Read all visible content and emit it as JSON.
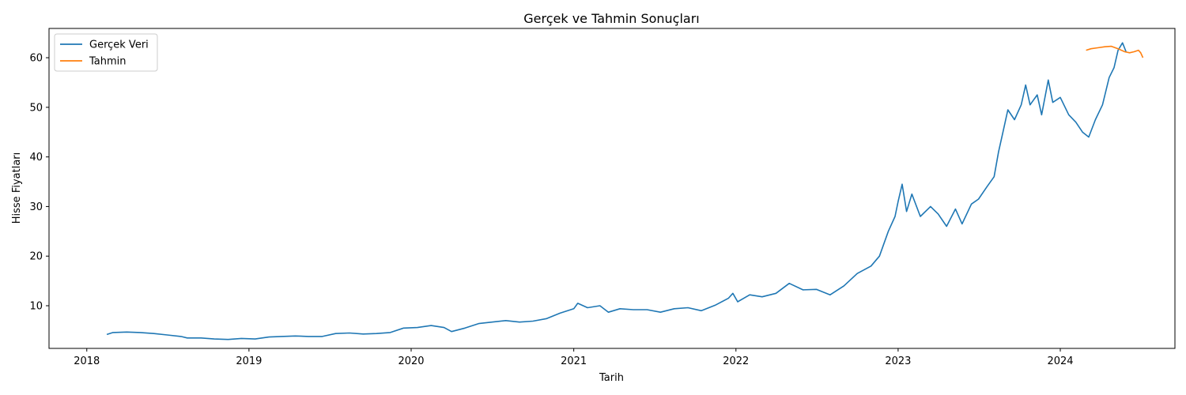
{
  "chart_data": {
    "type": "line",
    "title": "Gerçek ve Tahmin Sonuçları",
    "xlabel": "Tarih",
    "ylabel": "Hisse Fiyatları",
    "x_axis": "date",
    "xlim": [
      "2017-10-08",
      "2024-09-15"
    ],
    "ylim": [
      1.4,
      65.9
    ],
    "x_ticks": [
      {
        "date": "2018-01-01",
        "label": "2018"
      },
      {
        "date": "2019-01-01",
        "label": "2019"
      },
      {
        "date": "2020-01-01",
        "label": "2020"
      },
      {
        "date": "2021-01-01",
        "label": "2021"
      },
      {
        "date": "2022-01-01",
        "label": "2022"
      },
      {
        "date": "2023-01-01",
        "label": "2023"
      },
      {
        "date": "2024-01-01",
        "label": "2024"
      }
    ],
    "y_ticks": [
      10,
      20,
      30,
      40,
      50,
      60
    ],
    "grid": false,
    "legend": {
      "position": "top-left"
    },
    "series": [
      {
        "name": "Gerçek Veri",
        "color": "#1f77b4",
        "points": [
          [
            "2018-02-15",
            4.2
          ],
          [
            "2018-03-01",
            4.6
          ],
          [
            "2018-04-01",
            4.7
          ],
          [
            "2018-05-01",
            4.6
          ],
          [
            "2018-06-01",
            4.4
          ],
          [
            "2018-07-01",
            4.1
          ],
          [
            "2018-08-01",
            3.8
          ],
          [
            "2018-08-15",
            3.5
          ],
          [
            "2018-09-15",
            3.5
          ],
          [
            "2018-10-15",
            3.3
          ],
          [
            "2018-11-15",
            3.2
          ],
          [
            "2018-12-15",
            3.4
          ],
          [
            "2019-01-15",
            3.3
          ],
          [
            "2019-02-15",
            3.7
          ],
          [
            "2019-03-15",
            3.8
          ],
          [
            "2019-04-15",
            3.9
          ],
          [
            "2019-05-15",
            3.8
          ],
          [
            "2019-06-15",
            3.8
          ],
          [
            "2019-07-15",
            4.4
          ],
          [
            "2019-08-15",
            4.5
          ],
          [
            "2019-09-15",
            4.3
          ],
          [
            "2019-10-15",
            4.4
          ],
          [
            "2019-11-15",
            4.6
          ],
          [
            "2019-12-15",
            5.5
          ],
          [
            "2020-01-15",
            5.6
          ],
          [
            "2020-02-15",
            6.0
          ],
          [
            "2020-03-15",
            5.6
          ],
          [
            "2020-04-01",
            4.8
          ],
          [
            "2020-05-01",
            5.5
          ],
          [
            "2020-06-01",
            6.4
          ],
          [
            "2020-07-01",
            6.7
          ],
          [
            "2020-08-01",
            7.0
          ],
          [
            "2020-09-01",
            6.7
          ],
          [
            "2020-10-01",
            6.9
          ],
          [
            "2020-11-01",
            7.4
          ],
          [
            "2020-12-01",
            8.5
          ],
          [
            "2021-01-01",
            9.4
          ],
          [
            "2021-01-10",
            10.5
          ],
          [
            "2021-02-01",
            9.6
          ],
          [
            "2021-03-01",
            10.0
          ],
          [
            "2021-03-20",
            8.7
          ],
          [
            "2021-04-15",
            9.4
          ],
          [
            "2021-05-15",
            9.2
          ],
          [
            "2021-06-15",
            9.2
          ],
          [
            "2021-07-15",
            8.7
          ],
          [
            "2021-08-15",
            9.4
          ],
          [
            "2021-09-15",
            9.6
          ],
          [
            "2021-10-15",
            9.0
          ],
          [
            "2021-11-15",
            10.1
          ],
          [
            "2021-12-15",
            11.5
          ],
          [
            "2021-12-25",
            12.5
          ],
          [
            "2022-01-05",
            10.8
          ],
          [
            "2022-02-01",
            12.2
          ],
          [
            "2022-03-01",
            11.8
          ],
          [
            "2022-04-01",
            12.5
          ],
          [
            "2022-05-01",
            14.5
          ],
          [
            "2022-06-01",
            13.2
          ],
          [
            "2022-07-01",
            13.3
          ],
          [
            "2022-08-01",
            12.2
          ],
          [
            "2022-09-01",
            14.0
          ],
          [
            "2022-10-01",
            16.5
          ],
          [
            "2022-11-01",
            18.0
          ],
          [
            "2022-11-20",
            20.0
          ],
          [
            "2022-12-10",
            25.0
          ],
          [
            "2022-12-25",
            28.0
          ],
          [
            "2023-01-01",
            31.0
          ],
          [
            "2023-01-10",
            34.5
          ],
          [
            "2023-01-20",
            29.0
          ],
          [
            "2023-02-01",
            32.5
          ],
          [
            "2023-02-20",
            28.0
          ],
          [
            "2023-03-15",
            30.0
          ],
          [
            "2023-04-01",
            28.5
          ],
          [
            "2023-04-20",
            26.0
          ],
          [
            "2023-05-10",
            29.5
          ],
          [
            "2023-05-25",
            26.5
          ],
          [
            "2023-06-15",
            30.5
          ],
          [
            "2023-07-01",
            31.5
          ],
          [
            "2023-07-20",
            34.0
          ],
          [
            "2023-08-05",
            36.0
          ],
          [
            "2023-08-15",
            41.0
          ],
          [
            "2023-08-25",
            45.0
          ],
          [
            "2023-09-05",
            49.5
          ],
          [
            "2023-09-20",
            47.5
          ],
          [
            "2023-10-05",
            50.5
          ],
          [
            "2023-10-15",
            54.5
          ],
          [
            "2023-10-25",
            50.5
          ],
          [
            "2023-11-10",
            52.5
          ],
          [
            "2023-11-20",
            48.5
          ],
          [
            "2023-12-05",
            55.5
          ],
          [
            "2023-12-15",
            51.0
          ],
          [
            "2024-01-01",
            52.0
          ],
          [
            "2024-01-20",
            48.5
          ],
          [
            "2024-02-05",
            47.0
          ],
          [
            "2024-02-20",
            45.0
          ],
          [
            "2024-03-05",
            44.0
          ],
          [
            "2024-03-20",
            47.5
          ],
          [
            "2024-04-05",
            50.5
          ],
          [
            "2024-04-20",
            56.0
          ],
          [
            "2024-05-01",
            58.0
          ],
          [
            "2024-05-10",
            61.5
          ],
          [
            "2024-05-20",
            63.0
          ],
          [
            "2024-05-28",
            61.2
          ]
        ]
      },
      {
        "name": "Tahmin",
        "color": "#ff7f0e",
        "points": [
          [
            "2024-02-28",
            61.5
          ],
          [
            "2024-03-10",
            61.8
          ],
          [
            "2024-03-25",
            62.0
          ],
          [
            "2024-04-10",
            62.2
          ],
          [
            "2024-04-25",
            62.3
          ],
          [
            "2024-05-10",
            61.8
          ],
          [
            "2024-05-25",
            61.2
          ],
          [
            "2024-06-05",
            61.0
          ],
          [
            "2024-06-15",
            61.2
          ],
          [
            "2024-06-25",
            61.5
          ],
          [
            "2024-06-30",
            61.0
          ],
          [
            "2024-07-05",
            60.0
          ]
        ]
      }
    ]
  }
}
